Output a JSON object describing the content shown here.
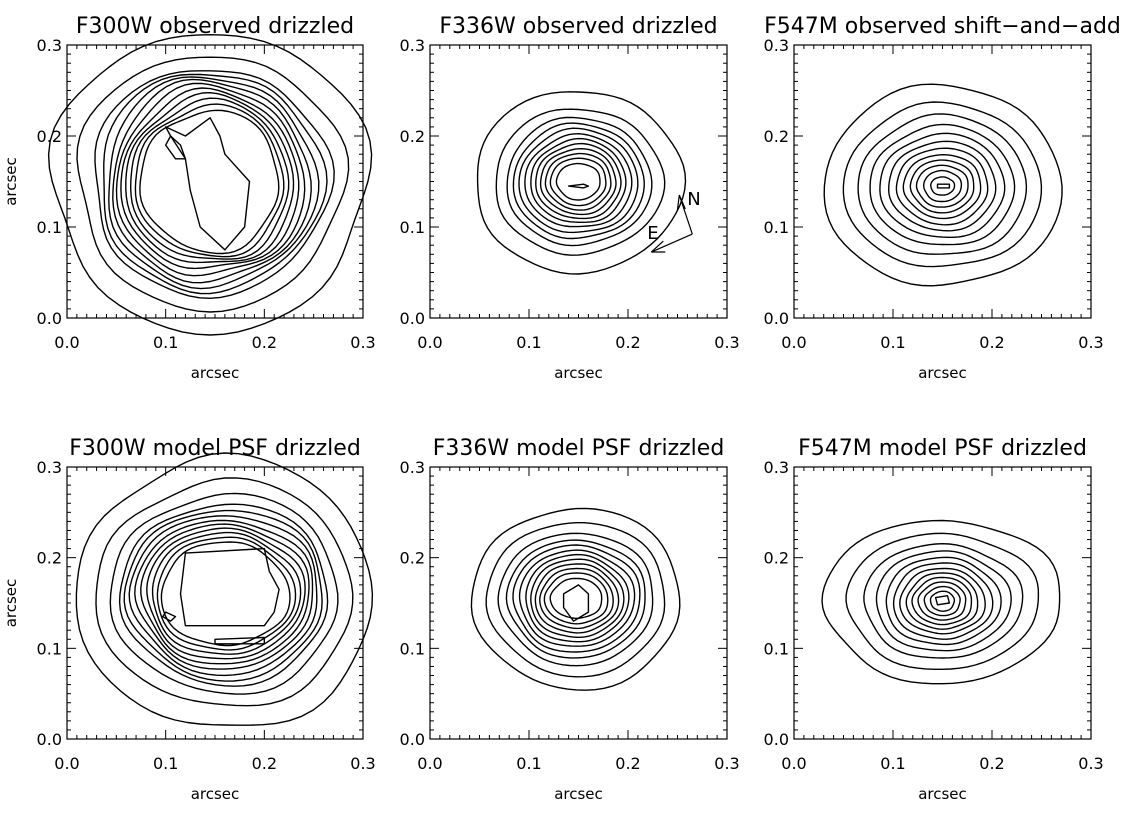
{
  "chart_data": [
    {
      "type": "contour",
      "title": "F300W observed drizzled",
      "xlabel": "arcsec",
      "ylabel": "arcsec",
      "xlim": [
        0.0,
        0.3
      ],
      "ylim": [
        0.0,
        0.3
      ],
      "xticks": [
        "0.0",
        "0.1",
        "0.2",
        "0.3"
      ],
      "yticks": [
        "0.0",
        "0.1",
        "0.2",
        "0.3"
      ],
      "center": [
        0.145,
        0.15
      ],
      "contour_radii_x": [
        0.16,
        0.135,
        0.12,
        0.113,
        0.106,
        0.1,
        0.095,
        0.09,
        0.085,
        0.08,
        0.075,
        0.07
      ],
      "contour_radii_y": [
        0.165,
        0.14,
        0.125,
        0.12,
        0.115,
        0.11,
        0.104,
        0.098,
        0.093,
        0.088,
        0.083,
        0.078
      ],
      "shape_noise": 0.05,
      "inner_features": [
        {
          "points": [
            [
              0.1,
              0.21
            ],
            [
              0.12,
              0.2
            ],
            [
              0.145,
              0.22
            ],
            [
              0.155,
              0.2
            ],
            [
              0.16,
              0.18
            ],
            [
              0.185,
              0.15
            ],
            [
              0.18,
              0.1
            ],
            [
              0.16,
              0.075
            ],
            [
              0.135,
              0.1
            ],
            [
              0.125,
              0.14
            ],
            [
              0.12,
              0.175
            ],
            [
              0.105,
              0.2
            ]
          ]
        },
        {
          "points": [
            [
              0.105,
              0.2
            ],
            [
              0.115,
              0.19
            ],
            [
              0.12,
              0.175
            ],
            [
              0.11,
              0.175
            ],
            [
              0.1,
              0.19
            ]
          ]
        }
      ]
    },
    {
      "type": "contour",
      "title": "F336W observed drizzled",
      "xlabel": "arcsec",
      "ylabel": "",
      "xlim": [
        0.0,
        0.3
      ],
      "ylim": [
        0.0,
        0.3
      ],
      "xticks": [
        "0.0",
        "0.1",
        "0.2",
        "0.3"
      ],
      "yticks": [
        "0.0",
        "0.1",
        "0.2",
        "0.3"
      ],
      "center": [
        0.15,
        0.15
      ],
      "contour_radii_x": [
        0.105,
        0.085,
        0.073,
        0.066,
        0.06,
        0.054,
        0.048,
        0.043,
        0.038,
        0.033,
        0.028,
        0.022
      ],
      "contour_radii_y": [
        0.1,
        0.08,
        0.07,
        0.063,
        0.057,
        0.051,
        0.046,
        0.041,
        0.036,
        0.031,
        0.026,
        0.02
      ],
      "shape_noise": 0.03,
      "inner_features": [
        {
          "points": [
            [
              0.14,
              0.145
            ],
            [
              0.155,
              0.147
            ],
            [
              0.16,
              0.145
            ],
            [
              0.155,
              0.143
            ]
          ]
        }
      ],
      "orientation": {
        "north_label": "N",
        "east_label": "E"
      }
    },
    {
      "type": "contour",
      "title": "F547M observed shift−and−add",
      "xlabel": "arcsec",
      "ylabel": "",
      "xlim": [
        0.0,
        0.3
      ],
      "ylim": [
        0.0,
        0.3
      ],
      "xticks": [
        "0.0",
        "0.1",
        "0.2",
        "0.3"
      ],
      "yticks": [
        "0.0",
        "0.1",
        "0.2",
        "0.3"
      ],
      "center": [
        0.15,
        0.145
      ],
      "contour_radii_x": [
        0.12,
        0.1,
        0.085,
        0.073,
        0.063,
        0.054,
        0.046,
        0.039,
        0.032,
        0.026,
        0.019,
        0.012
      ],
      "contour_radii_y": [
        0.11,
        0.09,
        0.077,
        0.066,
        0.057,
        0.049,
        0.042,
        0.035,
        0.029,
        0.023,
        0.017,
        0.01
      ],
      "shape_noise": 0.03,
      "inner_features": [
        {
          "points": [
            [
              0.145,
              0.147
            ],
            [
              0.157,
              0.147
            ],
            [
              0.157,
              0.143
            ],
            [
              0.145,
              0.143
            ]
          ]
        }
      ]
    },
    {
      "type": "contour",
      "title": "F300W model PSF drizzled",
      "xlabel": "arcsec",
      "ylabel": "arcsec",
      "xlim": [
        0.0,
        0.3
      ],
      "ylim": [
        0.0,
        0.3
      ],
      "xticks": [
        "0.0",
        "0.1",
        "0.2",
        "0.3"
      ],
      "yticks": [
        "0.0",
        "0.1",
        "0.2",
        "0.3"
      ],
      "center": [
        0.16,
        0.16
      ],
      "contour_radii_x": [
        0.15,
        0.13,
        0.115,
        0.105,
        0.1,
        0.095,
        0.09,
        0.085,
        0.08,
        0.075,
        0.07,
        0.065
      ],
      "contour_radii_y": [
        0.15,
        0.125,
        0.11,
        0.1,
        0.094,
        0.088,
        0.082,
        0.077,
        0.072,
        0.067,
        0.062,
        0.057
      ],
      "shape_noise": 0.04,
      "inner_features": [
        {
          "points": [
            [
              0.12,
              0.205
            ],
            [
              0.2,
              0.21
            ],
            [
              0.205,
              0.185
            ],
            [
              0.215,
              0.165
            ],
            [
              0.21,
              0.14
            ],
            [
              0.2,
              0.125
            ],
            [
              0.12,
              0.125
            ],
            [
              0.115,
              0.16
            ]
          ]
        },
        {
          "points": [
            [
              0.1,
              0.14
            ],
            [
              0.11,
              0.135
            ],
            [
              0.105,
              0.13
            ],
            [
              0.097,
              0.135
            ]
          ]
        },
        {
          "points": [
            [
              0.15,
              0.11
            ],
            [
              0.2,
              0.112
            ],
            [
              0.2,
              0.105
            ],
            [
              0.15,
              0.105
            ]
          ]
        }
      ]
    },
    {
      "type": "contour",
      "title": "F336W model PSF drizzled",
      "xlabel": "arcsec",
      "ylabel": "",
      "xlim": [
        0.0,
        0.3
      ],
      "ylim": [
        0.0,
        0.3
      ],
      "xticks": [
        "0.0",
        "0.1",
        "0.2",
        "0.3"
      ],
      "yticks": [
        "0.0",
        "0.1",
        "0.2",
        "0.3"
      ],
      "center": [
        0.148,
        0.155
      ],
      "contour_radii_x": [
        0.105,
        0.09,
        0.078,
        0.07,
        0.064,
        0.058,
        0.052,
        0.047,
        0.042,
        0.037,
        0.032,
        0.026
      ],
      "contour_radii_y": [
        0.1,
        0.085,
        0.073,
        0.065,
        0.059,
        0.053,
        0.048,
        0.043,
        0.038,
        0.033,
        0.028,
        0.022
      ],
      "shape_noise": 0.03,
      "inner_features": [
        {
          "points": [
            [
              0.135,
              0.16
            ],
            [
              0.15,
              0.17
            ],
            [
              0.16,
              0.16
            ],
            [
              0.16,
              0.14
            ],
            [
              0.145,
              0.13
            ],
            [
              0.135,
              0.145
            ]
          ]
        }
      ]
    },
    {
      "type": "contour",
      "title": "F547M model PSF drizzled",
      "xlabel": "arcsec",
      "ylabel": "",
      "xlim": [
        0.0,
        0.3
      ],
      "ylim": [
        0.0,
        0.3
      ],
      "xticks": [
        "0.0",
        "0.1",
        "0.2",
        "0.3"
      ],
      "yticks": [
        "0.0",
        "0.1",
        "0.2",
        "0.3"
      ],
      "center": [
        0.15,
        0.152
      ],
      "contour_radii_x": [
        0.12,
        0.097,
        0.08,
        0.068,
        0.058,
        0.05,
        0.043,
        0.036,
        0.03,
        0.024,
        0.018,
        0.012
      ],
      "contour_radii_y": [
        0.09,
        0.075,
        0.063,
        0.055,
        0.048,
        0.042,
        0.036,
        0.031,
        0.026,
        0.021,
        0.016,
        0.011
      ],
      "shape_noise": 0.035,
      "inner_features": [
        {
          "points": [
            [
              0.143,
              0.156
            ],
            [
              0.155,
              0.158
            ],
            [
              0.157,
              0.15
            ],
            [
              0.145,
              0.148
            ]
          ]
        }
      ]
    }
  ]
}
